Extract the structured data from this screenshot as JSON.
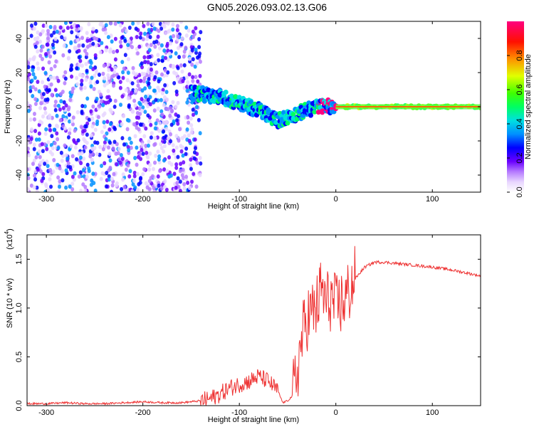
{
  "figure": {
    "title": "GN05.2026.093.02.13.G06"
  },
  "chart_data": [
    {
      "type": "heatmap",
      "title": "GN05.2026.093.02.13.G06",
      "xlabel": "Height of straight line (km)",
      "ylabel": "Frequency (Hz)",
      "xlim": [
        -320,
        150
      ],
      "ylim": [
        -50,
        50
      ],
      "x_ticks": [
        "-300",
        "-200",
        "-100",
        "0",
        "100"
      ],
      "x_tick_values": [
        -300,
        -200,
        -100,
        0,
        100
      ],
      "y_ticks": [
        "-40",
        "-20",
        "0",
        "20",
        "40"
      ],
      "y_tick_values": [
        -40,
        -20,
        0,
        20,
        40
      ],
      "colorbar": {
        "label": "Normalized spectral amplitude",
        "range": [
          0.0,
          1.0
        ],
        "ticks": [
          "0.0",
          "0.2",
          "0.4",
          "0.6",
          "0.8"
        ],
        "tick_values": [
          0.0,
          0.2,
          0.4,
          0.6,
          0.8
        ],
        "colors": [
          "#ffffff",
          "#d9b3ff",
          "#8a2be2",
          "#5a00ff",
          "#0000ff",
          "#00bfff",
          "#00ffcc",
          "#00ff00",
          "#ffff00",
          "#ff8000",
          "#ff0000",
          "#ff00aa"
        ]
      },
      "ridge": {
        "description_values": "frequency (Hz) of main spectral ridge vs height (km)",
        "x": [
          -150,
          -120,
          -100,
          -80,
          -60,
          -50,
          -40,
          -30,
          -20,
          -10,
          0,
          50,
          100,
          150
        ],
        "y": [
          8,
          6,
          2,
          -2,
          -8,
          -6,
          -4,
          -2,
          0,
          0.5,
          0,
          0,
          0,
          0
        ]
      }
    },
    {
      "type": "line",
      "xlabel": "Height of straight line (km)",
      "ylabel": "SNR (10 * v/v)",
      "y_multiplier": "(x10",
      "y_multiplier_exp": "4",
      "xlim": [
        -320,
        150
      ],
      "ylim": [
        0,
        1.75
      ],
      "x_ticks": [
        "-300",
        "-200",
        "-100",
        "0",
        "100"
      ],
      "x_tick_values": [
        -300,
        -200,
        -100,
        0,
        100
      ],
      "y_ticks": [
        "0.0",
        "0.5",
        "1.0",
        "1.5"
      ],
      "y_tick_values": [
        0.0,
        0.5,
        1.0,
        1.5
      ],
      "series": [
        {
          "name": "SNR",
          "color": "#ee3333",
          "x": [
            -320,
            -300,
            -280,
            -260,
            -240,
            -220,
            -200,
            -180,
            -160,
            -140,
            -130,
            -120,
            -110,
            -100,
            -90,
            -80,
            -70,
            -60,
            -55,
            -50,
            -45,
            -40,
            -35,
            -30,
            -25,
            -20,
            -15,
            -10,
            -5,
            0,
            5,
            10,
            15,
            20,
            30,
            40,
            50,
            60,
            80,
            100,
            120,
            150
          ],
          "y": [
            0.02,
            0.02,
            0.03,
            0.02,
            0.02,
            0.03,
            0.04,
            0.03,
            0.03,
            0.05,
            0.07,
            0.12,
            0.18,
            0.22,
            0.25,
            0.3,
            0.25,
            0.15,
            0.03,
            0.05,
            0.1,
            0.35,
            0.7,
            0.9,
            0.95,
            1.0,
            1.2,
            1.05,
            1.1,
            1.0,
            1.05,
            1.1,
            1.2,
            1.3,
            1.42,
            1.47,
            1.47,
            1.46,
            1.44,
            1.42,
            1.39,
            1.33
          ]
        }
      ]
    }
  ]
}
